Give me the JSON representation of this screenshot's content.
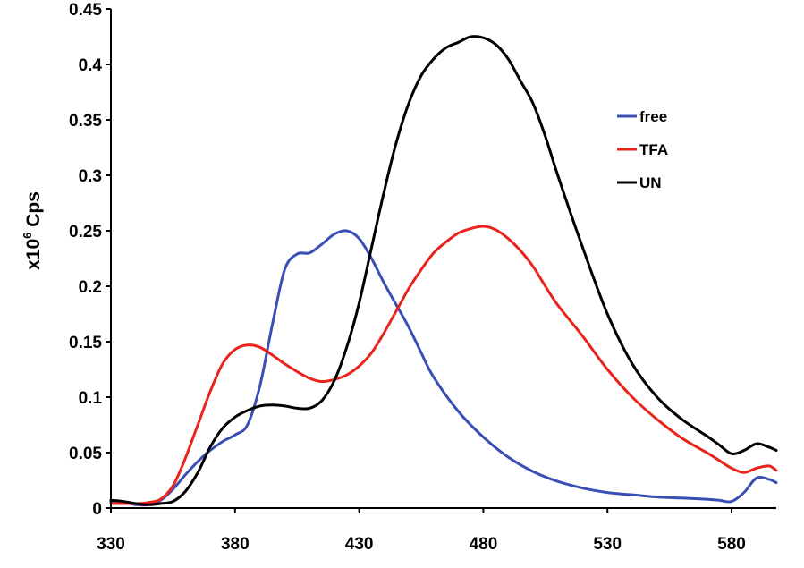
{
  "chart_data": {
    "type": "line",
    "title": "",
    "xlabel": "",
    "ylabel": "x10",
    "ylabel_superscript": "6",
    "ylabel_suffix": " Cps",
    "xlim": [
      330,
      598
    ],
    "ylim": [
      0,
      0.45
    ],
    "x_ticks": [
      330,
      380,
      430,
      480,
      530,
      580
    ],
    "x_tick_labels": [
      "330",
      "380",
      "430",
      "480",
      "530",
      "580"
    ],
    "y_ticks": [
      0,
      0.05,
      0.1,
      0.15,
      0.2,
      0.25,
      0.3,
      0.35,
      0.4,
      0.45
    ],
    "y_tick_labels": [
      "0",
      "0.05",
      "0.1",
      "0.15",
      "0.2",
      "0.25",
      "0.3",
      "0.35",
      "0.4",
      "0.45"
    ],
    "grid": false,
    "legend_position": "top-right",
    "series": [
      {
        "name": "free",
        "color": "#3a4fb5",
        "x": [
          330,
          335,
          340,
          345,
          350,
          355,
          360,
          365,
          370,
          375,
          380,
          385,
          390,
          395,
          400,
          405,
          410,
          415,
          420,
          425,
          430,
          435,
          440,
          445,
          450,
          455,
          460,
          470,
          480,
          490,
          500,
          510,
          520,
          530,
          540,
          550,
          560,
          570,
          575,
          580,
          585,
          590,
          595,
          598
        ],
        "y": [
          0.006,
          0.005,
          0.003,
          0.003,
          0.007,
          0.017,
          0.03,
          0.042,
          0.052,
          0.06,
          0.066,
          0.075,
          0.11,
          0.165,
          0.215,
          0.229,
          0.23,
          0.238,
          0.247,
          0.25,
          0.243,
          0.225,
          0.203,
          0.183,
          0.163,
          0.14,
          0.118,
          0.087,
          0.064,
          0.046,
          0.033,
          0.024,
          0.018,
          0.014,
          0.012,
          0.01,
          0.009,
          0.008,
          0.007,
          0.006,
          0.014,
          0.027,
          0.026,
          0.023
        ]
      },
      {
        "name": "TFA",
        "color": "#e8241c",
        "x": [
          330,
          335,
          340,
          345,
          350,
          355,
          360,
          365,
          370,
          375,
          380,
          385,
          390,
          395,
          400,
          405,
          410,
          415,
          420,
          425,
          430,
          435,
          440,
          445,
          450,
          455,
          460,
          465,
          470,
          475,
          480,
          485,
          490,
          495,
          500,
          505,
          510,
          520,
          530,
          540,
          550,
          560,
          570,
          575,
          580,
          585,
          590,
          595,
          598
        ],
        "y": [
          0.004,
          0.004,
          0.004,
          0.005,
          0.008,
          0.02,
          0.045,
          0.075,
          0.105,
          0.13,
          0.143,
          0.147,
          0.145,
          0.138,
          0.13,
          0.123,
          0.117,
          0.114,
          0.116,
          0.12,
          0.128,
          0.14,
          0.158,
          0.178,
          0.198,
          0.215,
          0.23,
          0.24,
          0.248,
          0.252,
          0.254,
          0.251,
          0.243,
          0.232,
          0.218,
          0.2,
          0.183,
          0.155,
          0.125,
          0.1,
          0.08,
          0.063,
          0.05,
          0.043,
          0.036,
          0.032,
          0.036,
          0.038,
          0.034
        ]
      },
      {
        "name": "UN",
        "color": "#000000",
        "x": [
          330,
          335,
          340,
          345,
          350,
          355,
          360,
          365,
          370,
          375,
          380,
          385,
          390,
          395,
          400,
          405,
          410,
          415,
          420,
          425,
          430,
          435,
          440,
          445,
          450,
          455,
          460,
          465,
          470,
          475,
          480,
          485,
          490,
          495,
          500,
          505,
          510,
          520,
          530,
          540,
          550,
          560,
          570,
          575,
          580,
          585,
          590,
          595,
          598
        ],
        "y": [
          0.007,
          0.006,
          0.004,
          0.003,
          0.004,
          0.006,
          0.015,
          0.032,
          0.055,
          0.072,
          0.082,
          0.088,
          0.092,
          0.093,
          0.092,
          0.09,
          0.09,
          0.097,
          0.115,
          0.145,
          0.185,
          0.235,
          0.285,
          0.33,
          0.365,
          0.39,
          0.405,
          0.415,
          0.42,
          0.425,
          0.424,
          0.418,
          0.405,
          0.385,
          0.365,
          0.335,
          0.3,
          0.235,
          0.175,
          0.13,
          0.1,
          0.08,
          0.065,
          0.057,
          0.049,
          0.052,
          0.058,
          0.055,
          0.052
        ]
      }
    ]
  }
}
